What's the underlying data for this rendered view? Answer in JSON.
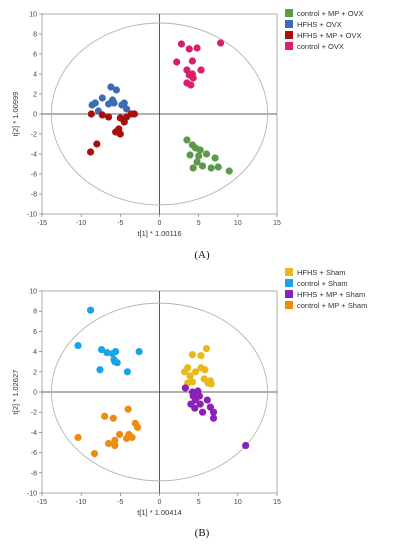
{
  "chart_data": [
    {
      "type": "scatter",
      "panel_label": "(A)",
      "xlabel": "t[1] * 1.00116",
      "ylabel": "t[2] * 1.00999",
      "xlim": [
        -15,
        15
      ],
      "ylim": [
        -10,
        10
      ],
      "xticks": [
        -15,
        -10,
        -5,
        0,
        5,
        10,
        15
      ],
      "yticks": [
        -10,
        -8,
        -6,
        -4,
        -2,
        0,
        2,
        4,
        6,
        8,
        10
      ],
      "grid": false,
      "legend_position": "right",
      "ellipse": {
        "center": [
          0,
          0
        ],
        "rx": 13.8,
        "ry": 9.1
      },
      "series": [
        {
          "name": "control + MP + OVX",
          "color": "#5b9a48",
          "points": [
            [
              3.5,
              -2.6
            ],
            [
              4.2,
              -3.1
            ],
            [
              4.6,
              -3.4
            ],
            [
              3.9,
              -4.1
            ],
            [
              5.2,
              -3.6
            ],
            [
              6.0,
              -4.0
            ],
            [
              4.8,
              -4.8
            ],
            [
              5.5,
              -5.2
            ],
            [
              7.1,
              -4.4
            ],
            [
              7.5,
              -5.3
            ],
            [
              6.6,
              -5.4
            ],
            [
              8.9,
              -5.7
            ],
            [
              4.3,
              -5.4
            ],
            [
              5.0,
              -4.2
            ]
          ]
        },
        {
          "name": "HFHS + OVX",
          "color": "#3c6db4",
          "points": [
            [
              -6.2,
              2.7
            ],
            [
              -5.5,
              2.4
            ],
            [
              -7.3,
              1.6
            ],
            [
              -8.6,
              0.9
            ],
            [
              -8.2,
              1.1
            ],
            [
              -6.5,
              1.0
            ],
            [
              -5.8,
              1.1
            ],
            [
              -4.8,
              0.9
            ],
            [
              -4.5,
              1.1
            ],
            [
              -4.2,
              0.5
            ],
            [
              -6.0,
              1.4
            ],
            [
              -7.8,
              0.3
            ]
          ]
        },
        {
          "name": "HFHS + MP + OVX",
          "color": "#a80f0f",
          "points": [
            [
              -8.8,
              -3.8
            ],
            [
              -8.0,
              -3.0
            ],
            [
              -8.7,
              0.0
            ],
            [
              -7.3,
              -0.1
            ],
            [
              -6.5,
              -0.3
            ],
            [
              -5.0,
              -0.4
            ],
            [
              -4.2,
              -0.3
            ],
            [
              -3.6,
              0.0
            ],
            [
              -3.2,
              0.0
            ],
            [
              -5.2,
              -1.5
            ],
            [
              -5.6,
              -1.8
            ],
            [
              -5.0,
              -2.0
            ],
            [
              -4.5,
              -0.8
            ]
          ]
        },
        {
          "name": "control + OVX",
          "color": "#d81e6c",
          "points": [
            [
              2.8,
              7.0
            ],
            [
              3.8,
              6.5
            ],
            [
              4.8,
              6.6
            ],
            [
              3.5,
              4.4
            ],
            [
              4.2,
              4.0
            ],
            [
              2.2,
              5.2
            ],
            [
              3.5,
              3.1
            ],
            [
              4.0,
              2.9
            ],
            [
              4.3,
              3.6
            ],
            [
              5.3,
              4.4
            ],
            [
              4.2,
              5.3
            ],
            [
              7.8,
              7.1
            ],
            [
              3.8,
              3.9
            ]
          ]
        }
      ]
    },
    {
      "type": "scatter",
      "panel_label": "(B)",
      "xlabel": "t[1] * 1.00414",
      "ylabel": "t[2] * 1.02627",
      "xlim": [
        -15,
        15
      ],
      "ylim": [
        -10,
        10
      ],
      "xticks": [
        -15,
        -10,
        -5,
        0,
        5,
        10,
        15
      ],
      "yticks": [
        -10,
        -8,
        -6,
        -4,
        -2,
        0,
        2,
        4,
        6,
        8,
        10
      ],
      "grid": false,
      "legend_position": "right",
      "ellipse": {
        "center": [
          0,
          0
        ],
        "rx": 13.8,
        "ry": 8.8
      },
      "series": [
        {
          "name": "HFHS + Sham",
          "color": "#e8b81c",
          "points": [
            [
              3.6,
              2.4
            ],
            [
              4.2,
              3.7
            ],
            [
              3.2,
              2.0
            ],
            [
              3.9,
              1.6
            ],
            [
              4.6,
              2.0
            ],
            [
              5.3,
              2.4
            ],
            [
              5.3,
              3.6
            ],
            [
              6.5,
              1.1
            ],
            [
              6.2,
              0.9
            ],
            [
              4.2,
              1.0
            ],
            [
              3.6,
              0.9
            ],
            [
              5.8,
              2.2
            ],
            [
              6.0,
              4.3
            ],
            [
              5.7,
              1.3
            ],
            [
              6.6,
              0.8
            ]
          ]
        },
        {
          "name": "control + Sham",
          "color": "#1aa3e8",
          "points": [
            [
              -8.8,
              8.1
            ],
            [
              -10.4,
              4.6
            ],
            [
              -7.4,
              4.2
            ],
            [
              -6.7,
              3.9
            ],
            [
              -6.0,
              3.8
            ],
            [
              -5.6,
              4.0
            ],
            [
              -5.8,
              3.2
            ],
            [
              -5.4,
              2.9
            ],
            [
              -7.6,
              2.2
            ],
            [
              -4.1,
              2.0
            ],
            [
              -2.6,
              4.0
            ],
            [
              -5.7,
              3.0
            ]
          ]
        },
        {
          "name": "HFHS + MP + Sham",
          "color": "#8b22b8",
          "points": [
            [
              3.3,
              0.4
            ],
            [
              4.2,
              0.0
            ],
            [
              4.9,
              0.1
            ],
            [
              5.1,
              -0.4
            ],
            [
              4.6,
              -0.8
            ],
            [
              4.0,
              -1.2
            ],
            [
              4.5,
              -1.6
            ],
            [
              5.2,
              -1.2
            ],
            [
              6.1,
              -0.8
            ],
            [
              6.5,
              -1.5
            ],
            [
              5.5,
              -2.0
            ],
            [
              6.9,
              -2.0
            ],
            [
              6.9,
              -2.6
            ],
            [
              11.0,
              -5.3
            ],
            [
              4.3,
              -0.4
            ]
          ]
        },
        {
          "name": "control + MP + Sham",
          "color": "#ee8c10",
          "points": [
            [
              -10.4,
              -4.5
            ],
            [
              -8.3,
              -6.1
            ],
            [
              -7.0,
              -2.4
            ],
            [
              -5.9,
              -2.6
            ],
            [
              -4.0,
              -1.7
            ],
            [
              -3.1,
              -3.1
            ],
            [
              -2.8,
              -3.5
            ],
            [
              -3.5,
              -4.5
            ],
            [
              -3.9,
              -4.2
            ],
            [
              -5.1,
              -4.2
            ],
            [
              -5.7,
              -4.8
            ],
            [
              -5.7,
              -5.3
            ],
            [
              -6.5,
              -5.1
            ],
            [
              -4.2,
              -4.6
            ]
          ]
        }
      ]
    }
  ]
}
